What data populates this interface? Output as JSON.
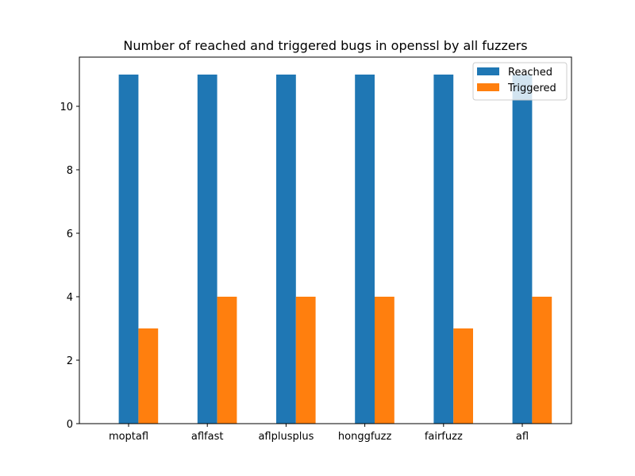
{
  "chart_data": {
    "type": "bar",
    "title": "Number of reached and triggered bugs in openssl by all fuzzers",
    "xlabel": "",
    "ylabel": "",
    "categories": [
      "moptafl",
      "aflfast",
      "aflplusplus",
      "honggfuzz",
      "fairfuzz",
      "afl"
    ],
    "series": [
      {
        "name": "Reached",
        "values": [
          11,
          11,
          11,
          11,
          11,
          11
        ],
        "color": "#1f77b4"
      },
      {
        "name": "Triggered",
        "values": [
          3,
          4,
          4,
          4,
          3,
          4
        ],
        "color": "#ff7f0e"
      }
    ],
    "ylim": [
      0,
      11.55
    ],
    "yticks": [
      0,
      2,
      4,
      6,
      8,
      10
    ],
    "grid": false,
    "legend_position": "top-right"
  }
}
